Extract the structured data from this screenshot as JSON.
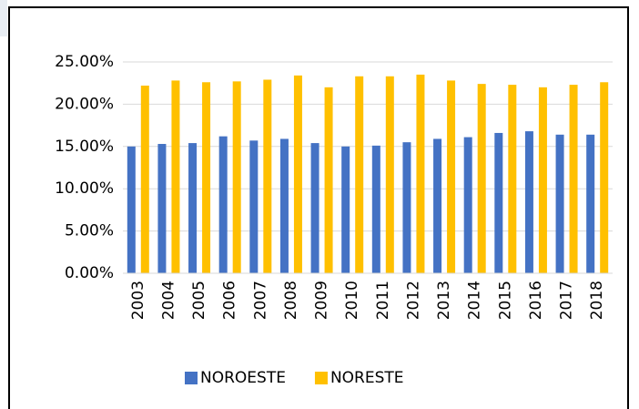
{
  "chart_data": {
    "type": "bar",
    "categories": [
      "2003",
      "2004",
      "2005",
      "2006",
      "2007",
      "2008",
      "2009",
      "2010",
      "2011",
      "2012",
      "2013",
      "2014",
      "2015",
      "2016",
      "2017",
      "2018"
    ],
    "series": [
      {
        "name": "NOROESTE",
        "color": "#4472c4",
        "values": [
          15.0,
          15.3,
          15.4,
          16.2,
          15.7,
          15.9,
          15.4,
          15.0,
          15.1,
          15.5,
          15.9,
          16.1,
          16.6,
          16.8,
          16.4,
          16.4
        ]
      },
      {
        "name": "NORESTE",
        "color": "#ffc000",
        "values": [
          22.2,
          22.8,
          22.6,
          22.7,
          22.9,
          23.4,
          22.0,
          23.3,
          23.3,
          23.5,
          22.8,
          22.4,
          22.3,
          22.0,
          22.3,
          22.6
        ]
      }
    ],
    "ylim": [
      0,
      25
    ],
    "yticks": [
      {
        "value": 0,
        "label": "0.00%"
      },
      {
        "value": 5,
        "label": "5.00%"
      },
      {
        "value": 10,
        "label": "10.00%"
      },
      {
        "value": 15,
        "label": "15.00%"
      },
      {
        "value": 20,
        "label": "20.00%"
      },
      {
        "value": 25,
        "label": "25.00%"
      }
    ],
    "grid": true,
    "legend": "bottom"
  }
}
